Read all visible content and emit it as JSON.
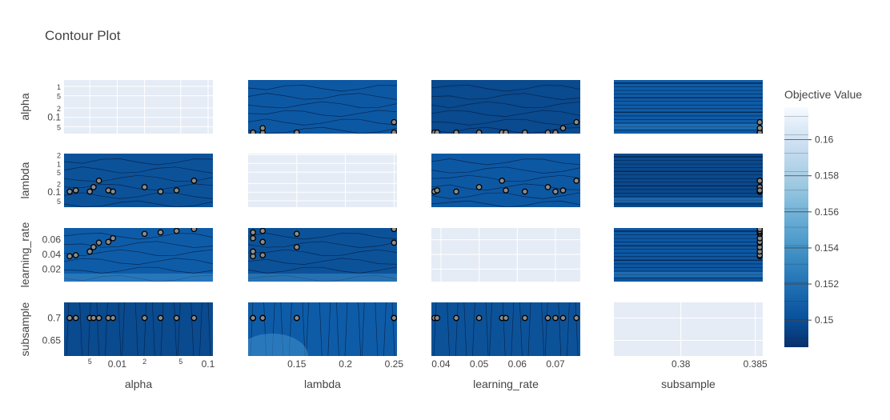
{
  "chart_data": {
    "type": "contour-matrix",
    "title": "Contour Plot",
    "params": [
      "alpha",
      "lambda",
      "learning_rate",
      "subsample"
    ],
    "axis_labels": {
      "alpha": "alpha",
      "lambda": "lambda",
      "learning_rate": "learning_rate",
      "subsample": "subsample"
    },
    "x_ticks": {
      "alpha": [
        {
          "v": 0.005,
          "label": "5",
          "small": true
        },
        {
          "v": 0.01,
          "label": "0.01",
          "small": false
        },
        {
          "v": 0.02,
          "label": "2",
          "small": true
        },
        {
          "v": 0.05,
          "label": "5",
          "small": true
        },
        {
          "v": 0.1,
          "label": "0.1",
          "small": false
        }
      ],
      "lambda": [
        {
          "v": 0.15,
          "label": "0.15"
        },
        {
          "v": 0.2,
          "label": "0.2"
        },
        {
          "v": 0.25,
          "label": "0.25"
        }
      ],
      "learning_rate": [
        {
          "v": 0.04,
          "label": "0.04"
        },
        {
          "v": 0.05,
          "label": "0.05"
        },
        {
          "v": 0.06,
          "label": "0.06"
        },
        {
          "v": 0.07,
          "label": "0.07"
        }
      ],
      "subsample": [
        {
          "v": 0.38,
          "label": "0.38"
        },
        {
          "v": 0.385,
          "label": "0.385"
        }
      ]
    },
    "y_ticks": {
      "alpha": [
        {
          "v": 1,
          "label": "1",
          "small": true
        },
        {
          "v": 0.5,
          "label": "5",
          "small": true
        },
        {
          "v": 0.2,
          "label": "2",
          "small": true
        },
        {
          "v": 0.1,
          "label": "0.1",
          "small": false
        },
        {
          "v": 0.05,
          "label": "5",
          "small": true
        }
      ],
      "lambda": [
        {
          "v": 2,
          "label": "2",
          "small": true
        },
        {
          "v": 1,
          "label": "1",
          "small": true
        },
        {
          "v": 0.5,
          "label": "5",
          "small": true
        },
        {
          "v": 0.2,
          "label": "2",
          "small": true
        },
        {
          "v": 0.1,
          "label": "0.1",
          "small": false
        },
        {
          "v": 0.05,
          "label": "5",
          "small": true
        }
      ],
      "learning_rate": [
        {
          "v": 0.06,
          "label": "0.06",
          "small": false
        },
        {
          "v": 0.04,
          "label": "0.04",
          "small": false
        },
        {
          "v": 0.02,
          "label": "0.02",
          "small": false
        }
      ],
      "subsample": [
        {
          "v": 0.7,
          "label": "0.7",
          "small": false
        },
        {
          "v": 0.65,
          "label": "0.65",
          "small": false
        }
      ]
    },
    "ranges": {
      "alpha": {
        "x": [
          0.0026,
          0.113
        ],
        "y": [
          0.03,
          1.6
        ],
        "log": true
      },
      "lambda": {
        "x": [
          0.1,
          0.253
        ],
        "y": [
          0.03,
          2.2
        ],
        "log_y": true
      },
      "learning_rate": {
        "x": [
          0.0375,
          0.0765
        ],
        "y": [
          0.003,
          0.076
        ]
      },
      "subsample": {
        "x": [
          0.3755,
          0.3855
        ],
        "y": [
          0.615,
          0.735
        ]
      }
    },
    "trials": [
      {
        "alpha": 0.003,
        "lambda": 0.105,
        "learning_rate": 0.0375,
        "subsample": 0.7
      },
      {
        "alpha": 0.0035,
        "lambda": 0.115,
        "learning_rate": 0.039,
        "subsample": 0.7
      },
      {
        "alpha": 0.005,
        "lambda": 0.105,
        "learning_rate": 0.044,
        "subsample": 0.7
      },
      {
        "alpha": 0.0055,
        "lambda": 0.15,
        "learning_rate": 0.05,
        "subsample": 0.7
      },
      {
        "alpha": 0.0063,
        "lambda": 0.25,
        "learning_rate": 0.056,
        "subsample": 0.7
      },
      {
        "alpha": 0.008,
        "lambda": 0.115,
        "learning_rate": 0.057,
        "subsample": 0.7
      },
      {
        "alpha": 0.009,
        "lambda": 0.105,
        "learning_rate": 0.062,
        "subsample": 0.7
      },
      {
        "alpha": 0.02,
        "lambda": 0.15,
        "learning_rate": 0.068,
        "subsample": 0.7
      },
      {
        "alpha": 0.03,
        "lambda": 0.105,
        "learning_rate": 0.07,
        "subsample": 0.7
      },
      {
        "alpha": 0.045,
        "lambda": 0.115,
        "learning_rate": 0.072,
        "subsample": 0.7
      },
      {
        "alpha": 0.07,
        "lambda": 0.25,
        "learning_rate": 0.0755,
        "subsample": 0.7
      }
    ],
    "colorbar": {
      "title": "Objective Value",
      "range": [
        0.1485,
        0.1618
      ],
      "ticks": [
        0.15,
        0.152,
        0.154,
        0.156,
        0.158,
        0.16
      ],
      "tick_labels": [
        "0.15",
        "0.152",
        "0.154",
        "0.156",
        "0.158",
        "0.16"
      ],
      "colorscale": [
        "#08306b",
        "#08519c",
        "#2171b5",
        "#4292c6",
        "#6baed6",
        "#9ecae1",
        "#c6dbef",
        "#deebf7",
        "#f7fbff"
      ]
    },
    "colors": {
      "empty_panel": "#e5ecf6",
      "gridline": "#ffffff",
      "marker_fill": "#8c8c8c",
      "marker_edge": "#000000"
    }
  }
}
